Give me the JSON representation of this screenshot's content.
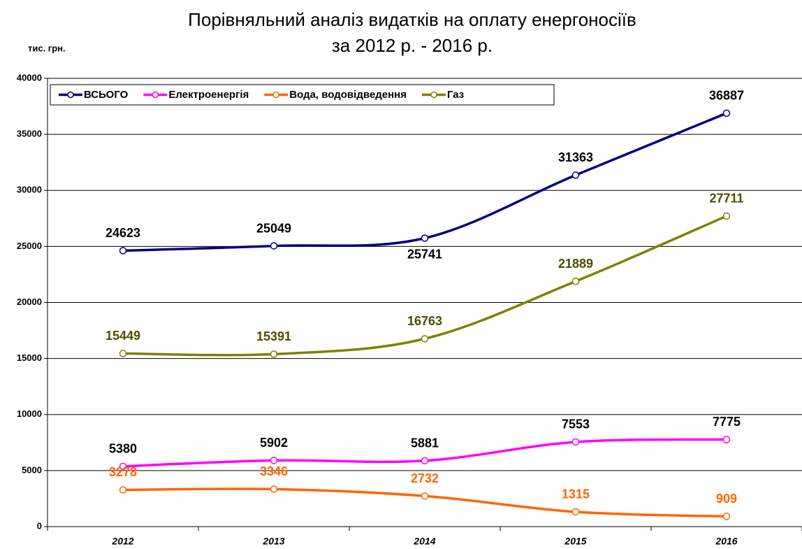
{
  "chart_data": {
    "type": "line",
    "title": [
      "Порівняльний аналіз видатків на оплату енергоносіїв",
      "за 2012 р. -  2016 р."
    ],
    "y_label": "тис. грн.",
    "categories": [
      "2012",
      "2013",
      "2014",
      "2015",
      "2016"
    ],
    "ylim": [
      0,
      40000
    ],
    "yticks": [
      0,
      5000,
      10000,
      15000,
      20000,
      25000,
      30000,
      35000,
      40000
    ],
    "grid": true,
    "legend": "top-left",
    "series": [
      {
        "name": "ВСЬОГО",
        "color": "#000080",
        "label_color": "#000000",
        "values": [
          24623,
          25049,
          25741,
          31363,
          36887
        ]
      },
      {
        "name": "Електроенергія",
        "color": "#ff00ff",
        "label_color": "#000000",
        "values": [
          5380,
          5902,
          5881,
          7553,
          7775
        ]
      },
      {
        "name": "Вода, водовідведення",
        "color": "#ff6600",
        "label_color": "#ff6600",
        "values": [
          3278,
          3346,
          2732,
          1315,
          909
        ]
      },
      {
        "name": "Газ",
        "color": "#808000",
        "label_color": "#4d4d00",
        "values": [
          15449,
          15391,
          16763,
          21889,
          27711
        ]
      }
    ]
  }
}
